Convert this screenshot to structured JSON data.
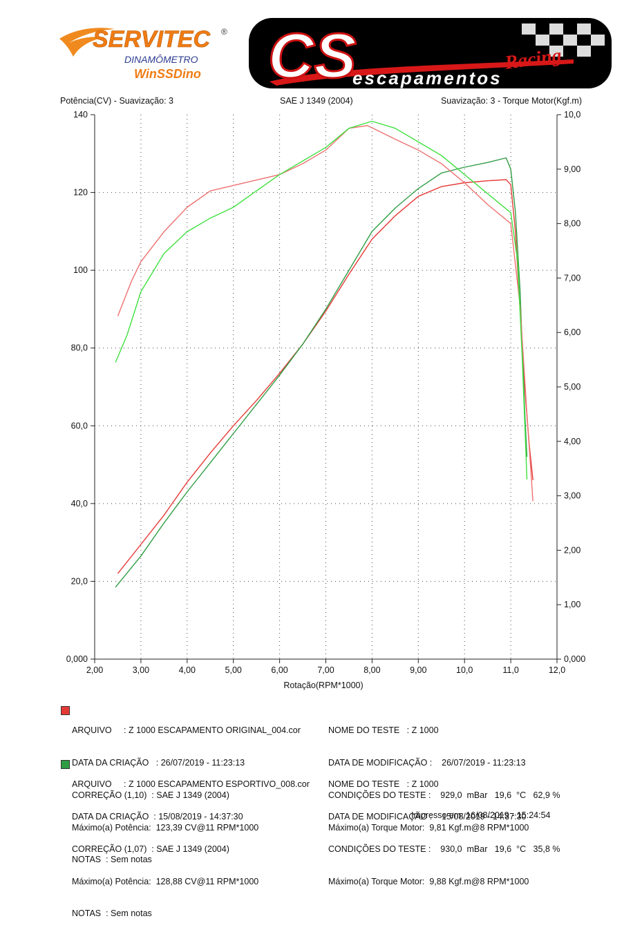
{
  "logos": {
    "servitec_brand": "SERVITEC",
    "servitec_reg": "®",
    "servitec_sub1": "DINAMÔMETRO",
    "servitec_sub2": "WinSSDino",
    "cs_brand": "CS",
    "cs_racing": "Racing",
    "cs_sub": "escapamentos"
  },
  "chart_data": {
    "type": "line",
    "title": "SAE J 1349 (2004)",
    "left_axis_label": "Potência(CV) - Suavização: 3",
    "right_axis_label": "Suavização: 3 - Torque Motor(Kgf.m)",
    "xlabel": "Rotação(RPM*1000)",
    "xlim": [
      2.0,
      12.0
    ],
    "ylim_left": [
      0,
      140
    ],
    "ylim_right": [
      0,
      10
    ],
    "x_ticks": [
      "2,00",
      "3,00",
      "4,00",
      "5,00",
      "6,00",
      "7,00",
      "8,00",
      "9,00",
      "10,0",
      "11,0",
      "12,0"
    ],
    "y_left_ticks": [
      "0,000",
      "20,0",
      "40,0",
      "60,0",
      "80,0",
      "100",
      "120",
      "140"
    ],
    "y_right_ticks": [
      "0,000",
      "1,00",
      "2,00",
      "3,00",
      "4,00",
      "5,00",
      "6,00",
      "7,00",
      "8,00",
      "9,00",
      "10,0"
    ],
    "grid": true,
    "series": [
      {
        "name": "power_original",
        "axis": "left",
        "color": "#e53935",
        "points": [
          [
            2.5,
            22
          ],
          [
            3.0,
            29.5
          ],
          [
            3.5,
            37
          ],
          [
            4.0,
            45.5
          ],
          [
            4.5,
            53
          ],
          [
            5.0,
            60
          ],
          [
            5.5,
            66.5
          ],
          [
            6.0,
            73.5
          ],
          [
            6.5,
            81
          ],
          [
            7.0,
            89.5
          ],
          [
            7.5,
            99
          ],
          [
            8.0,
            108
          ],
          [
            8.5,
            114
          ],
          [
            9.0,
            119
          ],
          [
            9.5,
            121.5
          ],
          [
            10.0,
            122.5
          ],
          [
            10.5,
            123
          ],
          [
            10.9,
            123.3
          ],
          [
            11.0,
            122
          ],
          [
            11.1,
            110
          ],
          [
            11.2,
            90
          ],
          [
            11.3,
            70
          ],
          [
            11.4,
            55
          ],
          [
            11.48,
            46
          ]
        ]
      },
      {
        "name": "power_esportivo",
        "axis": "left",
        "color": "#2e9d44",
        "points": [
          [
            2.45,
            18.5
          ],
          [
            3.0,
            26.5
          ],
          [
            3.5,
            35
          ],
          [
            4.0,
            43
          ],
          [
            4.5,
            50.5
          ],
          [
            5.0,
            58
          ],
          [
            5.5,
            65.5
          ],
          [
            6.0,
            73
          ],
          [
            6.5,
            81
          ],
          [
            7.0,
            90
          ],
          [
            7.5,
            100
          ],
          [
            8.0,
            110
          ],
          [
            8.5,
            116
          ],
          [
            9.0,
            121
          ],
          [
            9.5,
            125
          ],
          [
            10.0,
            126.5
          ],
          [
            10.5,
            127.7
          ],
          [
            10.9,
            128.9
          ],
          [
            11.0,
            126
          ],
          [
            11.1,
            115
          ],
          [
            11.2,
            95
          ],
          [
            11.25,
            80
          ],
          [
            11.3,
            64
          ],
          [
            11.35,
            52
          ]
        ]
      },
      {
        "name": "torque_original",
        "axis": "right",
        "color": "#ee7070",
        "points": [
          [
            2.5,
            6.3
          ],
          [
            2.8,
            6.95
          ],
          [
            3.0,
            7.3
          ],
          [
            3.5,
            7.85
          ],
          [
            4.0,
            8.3
          ],
          [
            4.5,
            8.6
          ],
          [
            5.0,
            8.7
          ],
          [
            5.5,
            8.8
          ],
          [
            6.0,
            8.9
          ],
          [
            6.5,
            9.1
          ],
          [
            7.0,
            9.35
          ],
          [
            7.5,
            9.75
          ],
          [
            7.9,
            9.8
          ],
          [
            8.5,
            9.55
          ],
          [
            9.0,
            9.35
          ],
          [
            9.5,
            9.1
          ],
          [
            10.0,
            8.75
          ],
          [
            10.5,
            8.35
          ],
          [
            11.0,
            8.0
          ],
          [
            11.2,
            6.5
          ],
          [
            11.35,
            4.5
          ],
          [
            11.48,
            2.9
          ]
        ]
      },
      {
        "name": "torque_esportivo",
        "axis": "right",
        "color": "#3fe03f",
        "points": [
          [
            2.45,
            5.45
          ],
          [
            2.7,
            5.95
          ],
          [
            3.0,
            6.75
          ],
          [
            3.5,
            7.45
          ],
          [
            4.0,
            7.85
          ],
          [
            4.5,
            8.1
          ],
          [
            5.0,
            8.3
          ],
          [
            5.5,
            8.6
          ],
          [
            6.0,
            8.9
          ],
          [
            6.5,
            9.15
          ],
          [
            7.0,
            9.4
          ],
          [
            7.5,
            9.75
          ],
          [
            8.0,
            9.88
          ],
          [
            8.5,
            9.75
          ],
          [
            9.0,
            9.5
          ],
          [
            9.5,
            9.25
          ],
          [
            10.0,
            8.9
          ],
          [
            10.5,
            8.55
          ],
          [
            11.0,
            8.2
          ],
          [
            11.15,
            7.3
          ],
          [
            11.25,
            5.5
          ],
          [
            11.35,
            3.3
          ]
        ]
      }
    ]
  },
  "runs": [
    {
      "color": "#e53935",
      "left": [
        "ARQUIVO     : Z 1000 ESCAPAMENTO ORIGINAL_004.cor",
        "DATA DA CRIAÇÃO   : 26/07/2019 - 11:23:13",
        "CORREÇÃO (1,10)  : SAE J 1349 (2004)",
        "Máximo(a) Potência:  123,39 CV@11 RPM*1000",
        "NOTAS  : Sem notas"
      ],
      "right": [
        "NOME DO TESTE   : Z 1000",
        "DATA DE MODIFICAÇÃO :    26/07/2019 - 11:23:13",
        "CONDIÇÕES DO TESTE :    929,0  mBar   19,6  °C   62,9 %",
        "Máximo(a) Torque Motor:  9,81 Kgf.m@8 RPM*1000"
      ]
    },
    {
      "color": "#2e9d44",
      "left": [
        "ARQUIVO     : Z 1000 ESCAPAMENTO ESPORTIVO_008.cor",
        "DATA DA CRIAÇÃO  : 15/08/2019 - 14:37:30",
        "CORREÇÃO (1,07)  : SAE J 1349 (2004)",
        "Máximo(a) Potência:  128,88 CV@11 RPM*1000",
        "NOTAS  : Sem notas"
      ],
      "right": [
        "NOME DO TESTE   : Z 1000",
        "DATA DE MODIFICAÇÃO :    15/08/2019 - 14:37:30",
        "CONDIÇÕES DO TESTE :    930,0  mBar   19,6  °C   35,8 %",
        "Máximo(a) Torque Motor:  9,88 Kgf.m@8 RPM*1000"
      ]
    }
  ],
  "printed": "Impresso em: 16/08/2019 - 15:24:54"
}
